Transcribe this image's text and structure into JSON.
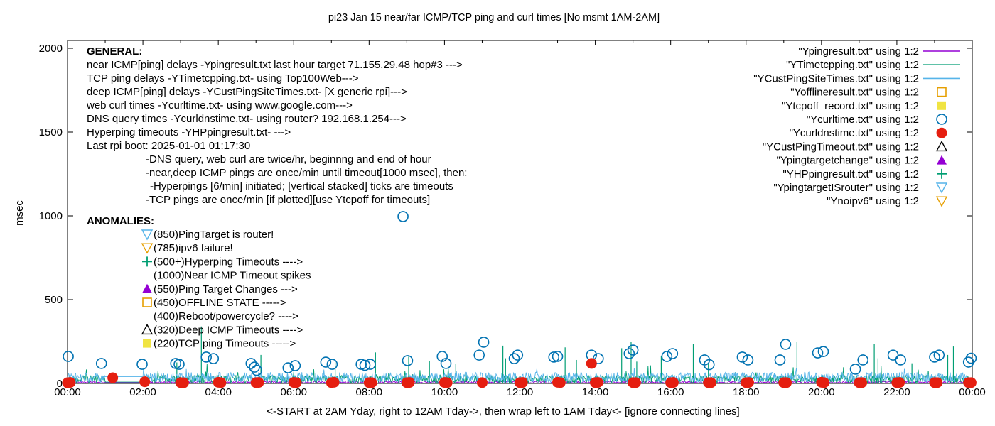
{
  "header": {
    "title": "pi23 Jan 15  near/far ICMP/TCP ping and curl times [No msmt 1AM-2AM]"
  },
  "colors": {
    "purple": "#9400d3",
    "green": "#009e73",
    "skyblue": "#56b4e9",
    "orange": "#e69f00",
    "yellow": "#f0e442",
    "blue": "#0072b2",
    "red": "#e51e10",
    "black": "#000000"
  },
  "legend": {
    "items": [
      {
        "label": "\"Ypingresult.txt\" using 1:2",
        "sample": "line",
        "color_key": "purple"
      },
      {
        "label": "\"YTimetcpping.txt\" using 1:2",
        "sample": "line",
        "color_key": "green"
      },
      {
        "label": "\"YCustPingSiteTimes.txt\" using 1:2",
        "sample": "line",
        "color_key": "skyblue"
      },
      {
        "label": "\"Yofflineresult.txt\" using 1:2",
        "sample": "open-square",
        "color_key": "orange"
      },
      {
        "label": "\"Ytcpoff_record.txt\" using 1:2",
        "sample": "filled-square",
        "color_key": "yellow"
      },
      {
        "label": "\"Ycurltime.txt\" using 1:2",
        "sample": "open-circle",
        "color_key": "blue"
      },
      {
        "label": "\"Ycurldnstime.txt\" using 1:2",
        "sample": "filled-circle",
        "color_key": "red"
      },
      {
        "label": "\"YCustPingTimeout.txt\" using 1:2",
        "sample": "open-triangle",
        "color_key": "black"
      },
      {
        "label": "\"Ypingtargetchange\" using 1:2",
        "sample": "filled-triangle",
        "color_key": "purple"
      },
      {
        "label": "\"YHPpingresult.txt\" using 1:2",
        "sample": "plus",
        "color_key": "green"
      },
      {
        "label": "\"YpingtargetISrouter\" using 1:2",
        "sample": "open-inv-triangle",
        "color_key": "skyblue"
      },
      {
        "label": "\"Ynoipv6\" using 1:2",
        "sample": "open-inv-triangle",
        "color_key": "orange"
      }
    ]
  },
  "annotations": {
    "general": {
      "header": "GENERAL:",
      "lines": [
        {
          "text": "near ICMP[ping] delays -Ypingresult.txt last hour target 71.155.29.48 hop#3 --->",
          "indent": 0
        },
        {
          "text": "TCP ping delays -YTimetcpping.txt- using Top100Web--->",
          "indent": 0
        },
        {
          "text": "deep ICMP[ping] delays -YCustPingSiteTimes.txt- [X generic rpi]--->",
          "indent": 0
        },
        {
          "text": "web curl times -Ycurltime.txt- using www.google.com--->",
          "indent": 0
        },
        {
          "text": "DNS query times -Ycurldnstime.txt- using router? 192.168.1.254--->",
          "indent": 0
        },
        {
          "text": "Hyperping timeouts -YHPpingresult.txt- --->",
          "indent": 0
        },
        {
          "text": "Last rpi boot: 2025-01-01 01:17:30",
          "indent": 0
        },
        {
          "text": "-DNS query, web curl are twice/hr, beginnng and end of hour",
          "indent": 1
        },
        {
          "text": "-near,deep ICMP pings are once/min until timeout[1000 msec], then:",
          "indent": 1
        },
        {
          "text": "-Hyperpings [6/min] initiated; [vertical stacked] ticks are timeouts",
          "indent": 2
        },
        {
          "text": "-TCP pings are once/min [if plotted][use Ytcpoff for timeouts]",
          "indent": 1
        }
      ]
    },
    "anomalies": {
      "header": "ANOMALIES:",
      "items": [
        {
          "marker": "open-inv-triangle",
          "color_key": "skyblue",
          "text": "(850)PingTarget is router!"
        },
        {
          "marker": "open-inv-triangle",
          "color_key": "orange",
          "text": "(785)ipv6 failure!"
        },
        {
          "marker": "plus",
          "color_key": "green",
          "text": "(500+)Hyperping Timeouts ---->"
        },
        {
          "marker": null,
          "color_key": null,
          "text": "(1000)Near ICMP Timeout spikes"
        },
        {
          "marker": "filled-triangle",
          "color_key": "purple",
          "text": "(550)Ping Target Changes --->"
        },
        {
          "marker": "open-square",
          "color_key": "orange",
          "text": "(450)OFFLINE STATE ----->"
        },
        {
          "marker": null,
          "color_key": null,
          "text": "(400)Reboot/powercycle? ---->"
        },
        {
          "marker": "open-triangle",
          "color_key": "black",
          "text": "(320)Deep ICMP Timeouts ---->"
        },
        {
          "marker": "filled-square",
          "color_key": "yellow",
          "text": "(220)TCP ping Timeouts ----->"
        }
      ]
    }
  },
  "chart_data": {
    "type": "line+scatter",
    "title": "pi23 Jan 15  near/far ICMP/TCP ping and curl times [No msmt 1AM-2AM]",
    "ylabel": "msec",
    "xlabel_note": "<-START at 2AM Yday, right to 12AM Tday->, then wrap left to 1AM Tday<- [ignore connecting lines]",
    "x_range_hours": [
      0,
      24
    ],
    "x_tick_labels": [
      "00:00",
      "02:00",
      "04:00",
      "06:00",
      "08:00",
      "10:00",
      "12:00",
      "14:00",
      "16:00",
      "18:00",
      "20:00",
      "22:00",
      "00:00"
    ],
    "y_ticks": [
      0,
      500,
      1000,
      1500,
      2000
    ],
    "y_range": [
      0,
      2045
    ],
    "grid": false,
    "legend_position": "top-right-inside",
    "no_measurement_gap_hours": [
      1,
      2
    ],
    "series": [
      {
        "name": "Ypingresult.txt",
        "type": "noise-line",
        "color_key": "purple",
        "noise": {
          "min": 1,
          "max": 13,
          "spike_prob": 0,
          "spike_extra": 0
        },
        "gap_level": 6,
        "spikes": []
      },
      {
        "name": "YTimetcpping.txt",
        "type": "noise-line",
        "color_key": "green",
        "noise": {
          "min": 2,
          "max": 48,
          "spike_prob": 0.04,
          "spike_extra": 70
        },
        "gap_level": 8,
        "spikes": [
          [
            2.9,
            125
          ],
          [
            3.55,
            340
          ],
          [
            5.13,
            170
          ],
          [
            7.1,
            125
          ],
          [
            8.17,
            185
          ],
          [
            9.05,
            160
          ],
          [
            9.6,
            135
          ],
          [
            10.3,
            115
          ],
          [
            11.55,
            225
          ],
          [
            11.62,
            150
          ],
          [
            13.2,
            215
          ],
          [
            13.5,
            140
          ],
          [
            14.7,
            210
          ],
          [
            14.95,
            250
          ],
          [
            15.1,
            130
          ],
          [
            15.75,
            165
          ],
          [
            16.6,
            235
          ],
          [
            17.0,
            120
          ],
          [
            19.35,
            250
          ],
          [
            21.4,
            235
          ],
          [
            21.5,
            150
          ],
          [
            22.4,
            120
          ],
          [
            23.35,
            170
          ],
          [
            23.5,
            220
          ]
        ]
      },
      {
        "name": "YCustPingSiteTimes.txt",
        "type": "noise-line",
        "color_key": "skyblue",
        "noise": {
          "min": 6,
          "max": 66,
          "spike_prob": 0.02,
          "spike_extra": 45
        },
        "gap_level": 40,
        "spikes": []
      },
      {
        "name": "Yofflineresult.txt",
        "type": "points",
        "marker": "open-square",
        "color_key": "orange",
        "points": []
      },
      {
        "name": "Ytcpoff_record.txt",
        "type": "points",
        "marker": "filled-square",
        "color_key": "yellow",
        "points": []
      },
      {
        "name": "Ycurltime.txt",
        "type": "points",
        "marker": "open-circle",
        "color_key": "blue",
        "points": [
          [
            0.02,
            161
          ],
          [
            0.9,
            119
          ],
          [
            1.98,
            114
          ],
          [
            2.87,
            119
          ],
          [
            2.96,
            114
          ],
          [
            3.68,
            157
          ],
          [
            3.87,
            148
          ],
          [
            4.87,
            119
          ],
          [
            4.96,
            97
          ],
          [
            5.02,
            78
          ],
          [
            5.85,
            93
          ],
          [
            6.04,
            106
          ],
          [
            6.85,
            127
          ],
          [
            7.02,
            114
          ],
          [
            7.79,
            114
          ],
          [
            7.89,
            108
          ],
          [
            8.03,
            114
          ],
          [
            8.9,
            996
          ],
          [
            9.02,
            136
          ],
          [
            9.94,
            161
          ],
          [
            10.04,
            119
          ],
          [
            10.92,
            169
          ],
          [
            11.04,
            246
          ],
          [
            11.85,
            148
          ],
          [
            11.94,
            169
          ],
          [
            12.9,
            157
          ],
          [
            13.0,
            161
          ],
          [
            13.9,
            169
          ],
          [
            14.08,
            148
          ],
          [
            14.9,
            178
          ],
          [
            15.0,
            199
          ],
          [
            15.9,
            161
          ],
          [
            16.05,
            178
          ],
          [
            16.9,
            140
          ],
          [
            17.02,
            112
          ],
          [
            17.9,
            157
          ],
          [
            18.05,
            140
          ],
          [
            18.9,
            140
          ],
          [
            19.05,
            233
          ],
          [
            19.9,
            182
          ],
          [
            20.05,
            190
          ],
          [
            20.9,
            85
          ],
          [
            21.1,
            140
          ],
          [
            21.9,
            169
          ],
          [
            22.1,
            140
          ],
          [
            23.0,
            157
          ],
          [
            23.12,
            169
          ],
          [
            23.9,
            127
          ],
          [
            23.97,
            150
          ]
        ]
      },
      {
        "name": "Ycurldnstime.txt",
        "type": "points",
        "marker": "filled-circle",
        "color_key": "red",
        "points": [
          [
            0.0,
            4
          ],
          [
            0.07,
            6
          ],
          [
            1.2,
            34
          ],
          [
            2.05,
            10
          ],
          [
            3.0,
            5
          ],
          [
            3.08,
            4
          ],
          [
            4.0,
            7
          ],
          [
            4.07,
            5
          ],
          [
            5.0,
            5
          ],
          [
            5.07,
            6
          ],
          [
            6.0,
            6
          ],
          [
            6.07,
            5
          ],
          [
            7.0,
            5
          ],
          [
            7.07,
            7
          ],
          [
            8.0,
            5
          ],
          [
            8.07,
            5
          ],
          [
            9.0,
            5
          ],
          [
            9.07,
            6
          ],
          [
            10.0,
            6
          ],
          [
            10.07,
            5
          ],
          [
            11.0,
            5
          ],
          [
            12.0,
            5
          ],
          [
            12.07,
            6
          ],
          [
            13.0,
            7
          ],
          [
            13.07,
            5
          ],
          [
            13.9,
            119
          ],
          [
            14.0,
            5
          ],
          [
            14.07,
            6
          ],
          [
            15.0,
            5
          ],
          [
            15.07,
            5
          ],
          [
            16.0,
            5
          ],
          [
            16.07,
            6
          ],
          [
            17.0,
            5
          ],
          [
            17.07,
            5
          ],
          [
            18.0,
            5
          ],
          [
            18.07,
            6
          ],
          [
            19.0,
            5
          ],
          [
            19.07,
            5
          ],
          [
            20.0,
            7
          ],
          [
            20.07,
            5
          ],
          [
            21.0,
            5
          ],
          [
            21.07,
            5
          ],
          [
            22.0,
            5
          ],
          [
            22.07,
            6
          ],
          [
            23.0,
            5
          ],
          [
            23.07,
            5
          ],
          [
            23.9,
            5
          ],
          [
            23.97,
            5
          ]
        ]
      },
      {
        "name": "YCustPingTimeout.txt",
        "type": "points",
        "marker": "open-triangle",
        "color_key": "black",
        "points": []
      },
      {
        "name": "Ypingtargetchange",
        "type": "points",
        "marker": "filled-triangle",
        "color_key": "purple",
        "points": []
      },
      {
        "name": "YHPpingresult.txt",
        "type": "points",
        "marker": "plus",
        "color_key": "green",
        "points": []
      },
      {
        "name": "YpingtargetISrouter",
        "type": "points",
        "marker": "open-inv-triangle",
        "color_key": "skyblue",
        "points": []
      },
      {
        "name": "Ynoipv6",
        "type": "points",
        "marker": "open-inv-triangle",
        "color_key": "orange",
        "points": []
      }
    ]
  }
}
